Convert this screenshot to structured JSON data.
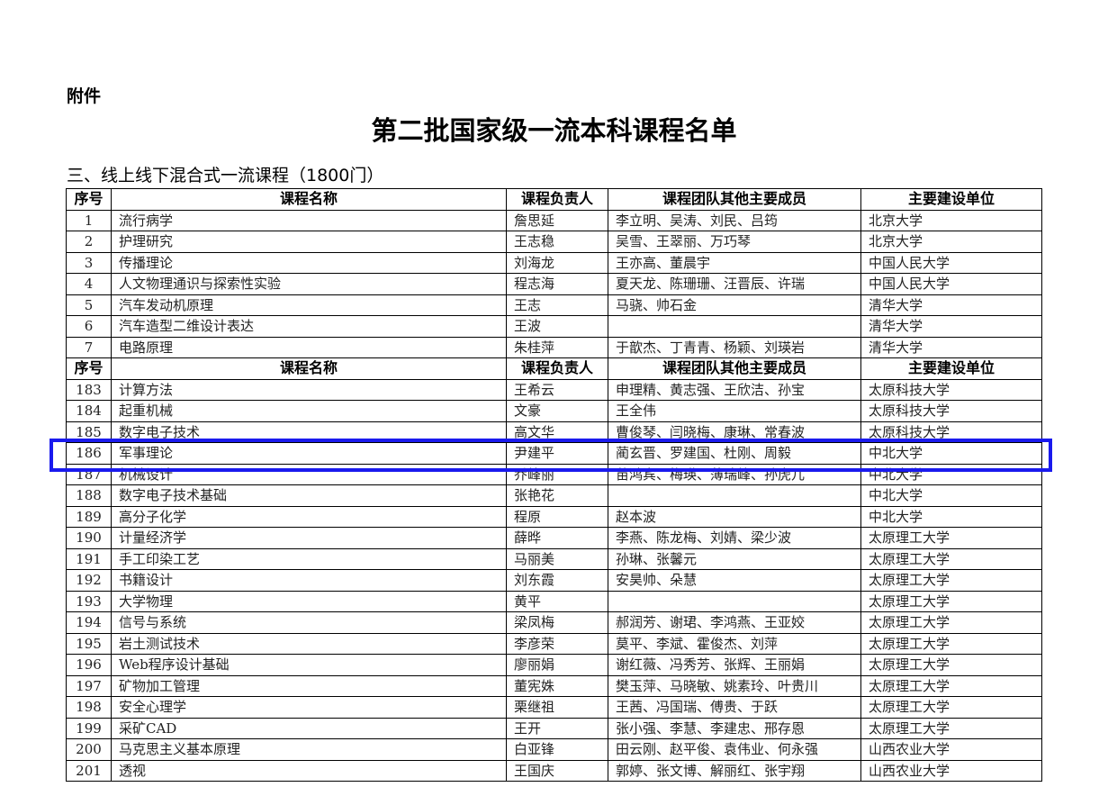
{
  "attachment_label": "附件",
  "title": "第二批国家级一流本科课程名单",
  "section": "三、线上线下混合式一流课程（1800门）",
  "headers": [
    "序号",
    "课程名称",
    "课程负责人",
    "课程团队其他主要成员",
    "主要建设单位"
  ],
  "rows_a": [
    [
      "1",
      "流行病学",
      "詹思延",
      "李立明、吴涛、刘民、吕筠",
      "北京大学"
    ],
    [
      "2",
      "护理研究",
      "王志稳",
      "吴雪、王翠丽、万巧琴",
      "北京大学"
    ],
    [
      "3",
      "传播理论",
      "刘海龙",
      "王亦高、董晨宇",
      "中国人民大学"
    ],
    [
      "4",
      "人文物理通识与探索性实验",
      "程志海",
      "夏天龙、陈珊珊、汪晋辰、许瑞",
      "中国人民大学"
    ],
    [
      "5",
      "汽车发动机原理",
      "王志",
      "马骁、帅石金",
      "清华大学"
    ],
    [
      "6",
      "汽车造型二维设计表达",
      "王波",
      "",
      "清华大学"
    ],
    [
      "7",
      "电路原理",
      "朱桂萍",
      "于歆杰、丁青青、杨颖、刘瑛岩",
      "清华大学"
    ]
  ],
  "rows_b": [
    [
      "183",
      "计算方法",
      "王希云",
      "申理精、黄志强、王欣洁、孙宝",
      "太原科技大学"
    ],
    [
      "184",
      "起重机械",
      "文豪",
      "王全伟",
      "太原科技大学"
    ],
    [
      "185",
      "数字电子技术",
      "高文华",
      "曹俊琴、闫晓梅、康琳、常春波",
      "太原科技大学"
    ],
    [
      "186",
      "军事理论",
      "尹建平",
      "蔺玄晋、罗建国、杜刚、周毅",
      "中北大学"
    ],
    [
      "187",
      "机械设计",
      "乔峰丽",
      "苗鸿宾、梅瑛、薄瑞峰、孙虎儿",
      "中北大学"
    ],
    [
      "188",
      "数字电子技术基础",
      "张艳花",
      "",
      "中北大学"
    ],
    [
      "189",
      "高分子化学",
      "程原",
      "赵本波",
      "中北大学"
    ],
    [
      "190",
      "计量经济学",
      "薛晔",
      "李燕、陈龙梅、刘婧、梁少波",
      "太原理工大学"
    ],
    [
      "191",
      "手工印染工艺",
      "马丽美",
      "孙琳、张馨元",
      "太原理工大学"
    ],
    [
      "192",
      "书籍设计",
      "刘东霞",
      "安昊帅、朵慧",
      "太原理工大学"
    ],
    [
      "193",
      "大学物理",
      "黄平",
      "",
      "太原理工大学"
    ],
    [
      "194",
      "信号与系统",
      "梁凤梅",
      "郝润芳、谢珺、李鸿燕、王亚姣",
      "太原理工大学"
    ],
    [
      "195",
      "岩土测试技术",
      "李彦荣",
      "莫平、李斌、霍俊杰、刘萍",
      "太原理工大学"
    ],
    [
      "196",
      "Web程序设计基础",
      "廖丽娟",
      "谢红薇、冯秀芳、张辉、王丽娟",
      "太原理工大学"
    ],
    [
      "197",
      "矿物加工管理",
      "董宪姝",
      "樊玉萍、马晓敏、姚素玲、叶贵川",
      "太原理工大学"
    ],
    [
      "198",
      "安全心理学",
      "栗继祖",
      "王茜、冯国瑞、傅贵、于跃",
      "太原理工大学"
    ],
    [
      "199",
      "采矿CAD",
      "王开",
      "张小强、李慧、李建忠、邢存恩",
      "太原理工大学"
    ],
    [
      "200",
      "马克思主义基本原理",
      "白亚锋",
      "田云刚、赵平俊、袁伟业、何永强",
      "山西农业大学"
    ],
    [
      "201",
      "透视",
      "王国庆",
      "郭婷、张文博、解丽红、张宇翔",
      "山西农业大学"
    ]
  ],
  "highlight_color": "#1a1aee"
}
